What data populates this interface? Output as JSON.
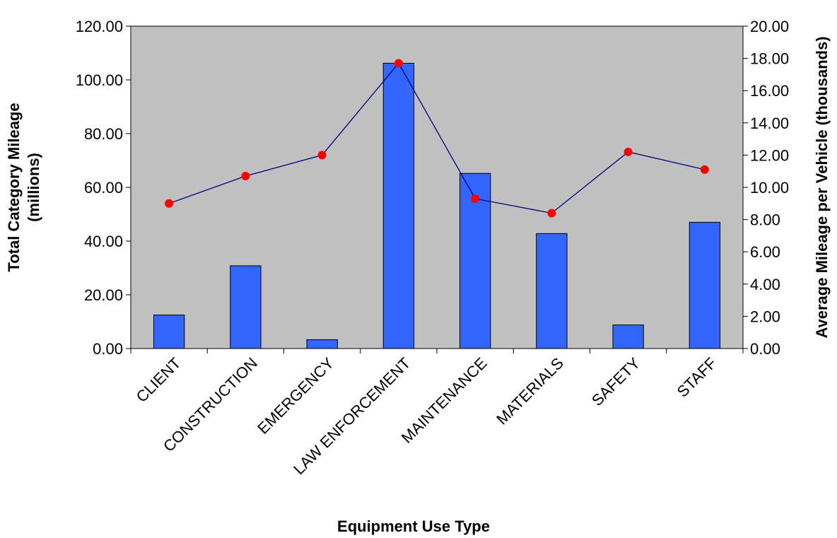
{
  "chart_data": {
    "type": "bar",
    "categories": [
      "CLIENT",
      "CONSTRUCTION",
      "EMERGENCY",
      "LAW ENFORCEMENT",
      "MAINTENANCE",
      "MATERIALS",
      "SAFETY",
      "STAFF"
    ],
    "series": [
      {
        "type": "bar",
        "axis": "left",
        "values": [
          12.5,
          30.8,
          3.3,
          106.2,
          65.2,
          42.8,
          8.8,
          47.0
        ]
      },
      {
        "type": "line",
        "axis": "right",
        "values": [
          9.0,
          10.7,
          12.0,
          17.7,
          9.3,
          8.4,
          12.2,
          11.1
        ]
      }
    ],
    "xlabel": "Equipment Use Type",
    "ylabel_lines": [
      "Total Category Mileage",
      "(millions)"
    ],
    "y2label": "Average Mileage per Vehicle (thousands)",
    "ylim": [
      0,
      120
    ],
    "y2lim": [
      0,
      20
    ],
    "yticks": [
      "0.00",
      "20.00",
      "40.00",
      "60.00",
      "80.00",
      "100.00",
      "120.00"
    ],
    "y2ticks": [
      "0.00",
      "2.00",
      "4.00",
      "6.00",
      "8.00",
      "10.00",
      "12.00",
      "14.00",
      "16.00",
      "18.00",
      "20.00"
    ],
    "grid": false,
    "legend": "none",
    "colors": {
      "plot_background": "#C0C0C0",
      "bar_fill": "#3366FF",
      "bar_stroke": "#000000",
      "line": "#000080",
      "marker": "#FF0000"
    }
  }
}
